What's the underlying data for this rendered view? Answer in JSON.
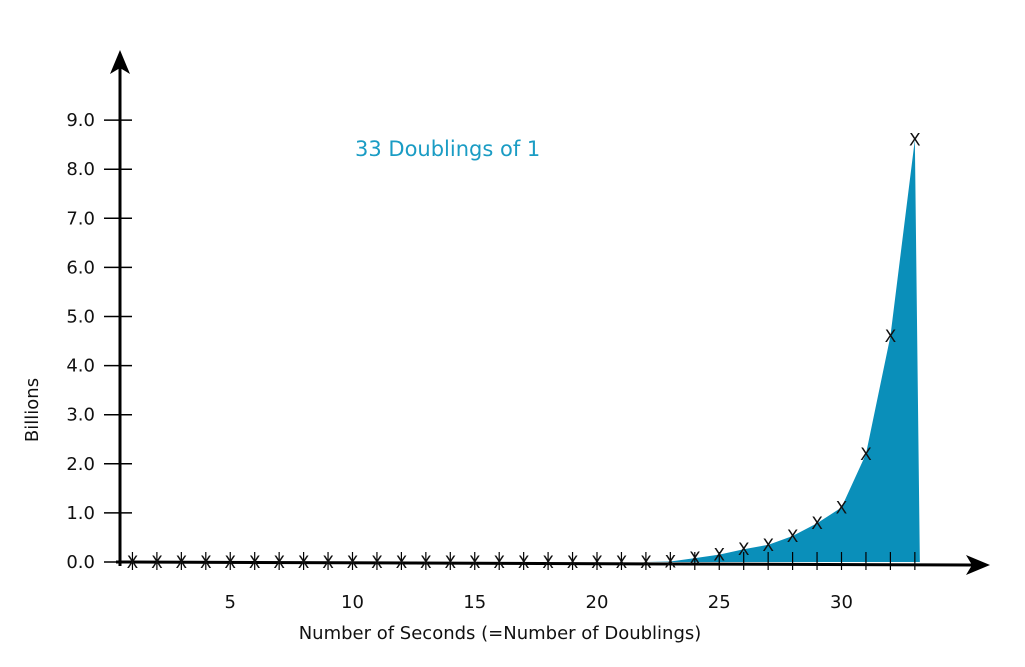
{
  "chart_data": {
    "type": "area",
    "title": "33 Doublings of 1",
    "xlabel": "Number of Seconds (=Number of Doublings)",
    "ylabel": "Billions",
    "x_tick_labels": [
      "5",
      "10",
      "15",
      "20",
      "25",
      "30"
    ],
    "x_ticks": [
      5,
      10,
      15,
      20,
      25,
      30
    ],
    "y_tick_labels": [
      "0.0",
      "1.0",
      "2.0",
      "3.0",
      "4.0",
      "5.0",
      "6.0",
      "7.0",
      "8.0",
      "9.0"
    ],
    "y_ticks": [
      0,
      1,
      2,
      3,
      4,
      5,
      6,
      7,
      8,
      9
    ],
    "xlim": [
      0,
      34
    ],
    "ylim": [
      0,
      9.5
    ],
    "marker_symbol": "X",
    "x": [
      1,
      2,
      3,
      4,
      5,
      6,
      7,
      8,
      9,
      10,
      11,
      12,
      13,
      14,
      15,
      16,
      17,
      18,
      19,
      20,
      21,
      22,
      23,
      24,
      25,
      26,
      27,
      28,
      29,
      30,
      31,
      32,
      33
    ],
    "values": [
      0,
      0,
      0,
      0,
      0,
      0,
      0,
      0,
      0,
      0,
      0,
      0,
      0,
      0,
      0,
      0,
      0,
      0,
      0,
      0,
      0,
      0,
      0.01,
      0.08,
      0.15,
      0.26,
      0.35,
      0.53,
      0.79,
      1.11,
      2.2,
      4.6,
      8.6
    ],
    "colors": {
      "fill": "#0a8fba",
      "title": "#1a9cc4",
      "axis": "#000000"
    }
  }
}
